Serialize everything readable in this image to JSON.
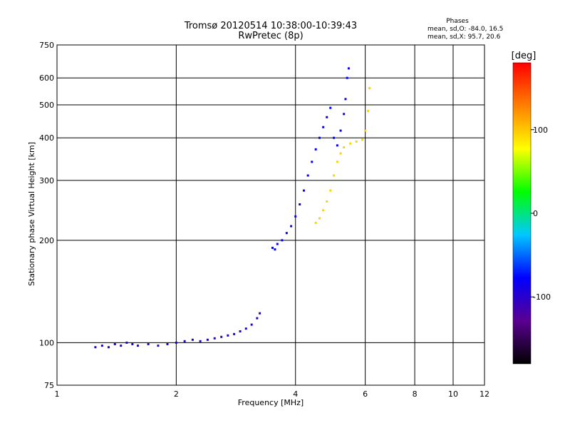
{
  "header": {
    "title": "Tromsø 20120514 10:38:00-10:39:43",
    "subtitle": "RwPretec (8p)"
  },
  "phases": {
    "heading": "Phases",
    "line_o": "mean, sd,O: -84.0, 16.5",
    "line_x": "mean, sd,X:  95.7, 20.6"
  },
  "colorbar": {
    "label": "[deg]",
    "ticks": [
      {
        "value": 100,
        "label": "100"
      },
      {
        "value": 0,
        "label": "0"
      },
      {
        "value": -100,
        "label": "-100"
      }
    ],
    "range": [
      -180,
      180
    ],
    "stops": [
      "#000000",
      "#5a0090",
      "#0000ff",
      "#00c8ff",
      "#00ff00",
      "#ffff00",
      "#ff8000",
      "#ff0000"
    ]
  },
  "chart_data": {
    "type": "scatter",
    "title": "Tromsø 20120514 10:38:00-10:39:43",
    "subtitle": "RwPretec (8p)",
    "xlabel": "Frequency [MHz]",
    "ylabel": "Stationary phase Virtual Height [km]",
    "xscale": "log",
    "yscale": "log",
    "xlim": [
      1,
      12
    ],
    "ylim": [
      75,
      750
    ],
    "xticks": [
      1,
      2,
      4,
      6,
      8,
      10,
      12
    ],
    "yticks": [
      75,
      100,
      200,
      300,
      400,
      500,
      600,
      750
    ],
    "grid": true,
    "color_value": "phase (deg)",
    "series": [
      {
        "phase": -95,
        "points": [
          [
            1.25,
            97
          ],
          [
            1.3,
            98
          ],
          [
            1.35,
            97
          ],
          [
            1.4,
            99
          ],
          [
            1.45,
            98
          ],
          [
            1.5,
            100
          ],
          [
            1.55,
            99
          ],
          [
            1.6,
            98
          ],
          [
            1.7,
            99
          ],
          [
            1.8,
            98
          ],
          [
            1.9,
            99
          ],
          [
            2.0,
            100
          ],
          [
            2.1,
            101
          ],
          [
            2.2,
            102
          ],
          [
            2.3,
            101
          ],
          [
            2.4,
            102
          ],
          [
            2.5,
            103
          ],
          [
            2.6,
            104
          ],
          [
            2.7,
            105
          ],
          [
            2.8,
            106
          ],
          [
            2.9,
            108
          ],
          [
            3.0,
            110
          ],
          [
            3.1,
            113
          ],
          [
            3.2,
            118
          ],
          [
            3.25,
            122
          ]
        ]
      },
      {
        "phase": -80,
        "points": [
          [
            3.5,
            190
          ],
          [
            3.55,
            188
          ],
          [
            3.6,
            195
          ],
          [
            3.7,
            200
          ],
          [
            3.8,
            210
          ],
          [
            3.9,
            220
          ],
          [
            4.0,
            235
          ],
          [
            4.1,
            255
          ],
          [
            4.2,
            280
          ],
          [
            4.3,
            310
          ],
          [
            4.4,
            340
          ],
          [
            4.5,
            370
          ],
          [
            4.6,
            400
          ],
          [
            4.7,
            430
          ],
          [
            4.8,
            460
          ],
          [
            4.9,
            490
          ],
          [
            5.0,
            400
          ],
          [
            5.1,
            380
          ],
          [
            5.2,
            420
          ],
          [
            5.3,
            470
          ],
          [
            5.35,
            520
          ],
          [
            5.4,
            600
          ],
          [
            5.45,
            640
          ]
        ]
      },
      {
        "phase": 95,
        "points": [
          [
            4.5,
            225
          ],
          [
            4.6,
            232
          ],
          [
            4.7,
            245
          ],
          [
            4.8,
            260
          ],
          [
            4.9,
            280
          ],
          [
            5.0,
            310
          ],
          [
            5.1,
            340
          ],
          [
            5.2,
            360
          ],
          [
            5.3,
            375
          ],
          [
            5.5,
            385
          ],
          [
            5.7,
            390
          ],
          [
            5.9,
            395
          ],
          [
            6.0,
            420
          ],
          [
            6.1,
            480
          ],
          [
            6.15,
            560
          ]
        ]
      }
    ]
  }
}
